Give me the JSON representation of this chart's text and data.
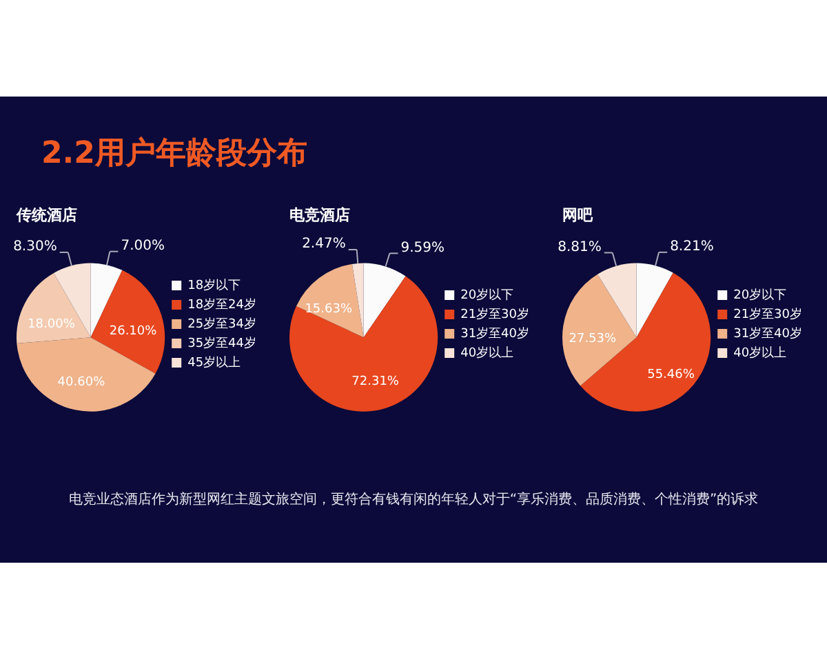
{
  "chart_data": [
    {
      "type": "pie",
      "title": "传统酒店",
      "categories": [
        "18岁以下",
        "18岁至24岁",
        "25岁至34岁",
        "35岁至44岁",
        "45岁以上"
      ],
      "values": [
        7.0,
        26.1,
        40.6,
        18.0,
        8.3
      ],
      "value_labels": [
        "7.00%",
        "26.10%",
        "40.60%",
        "18.00%",
        "8.30%"
      ],
      "colors": [
        "#fbfbfb",
        "#e8461e",
        "#f0b38a",
        "#f4cbb0",
        "#f7e3d8"
      ],
      "legend": "right",
      "annotations": [
        "2.2用户年龄段分布",
        "电竞业态酒店作为新型网红主题文旅空间，更符合有钱有闲的年轻人对于“享乐消费、品质消费、个性消费”的诉求"
      ]
    },
    {
      "type": "pie",
      "title": "电竞酒店",
      "categories": [
        "20岁以下",
        "21岁至30岁",
        "31岁至40岁",
        "40岁以上"
      ],
      "values": [
        9.59,
        72.31,
        15.63,
        2.47
      ],
      "value_labels": [
        "9.59%",
        "72.31%",
        "15.63%",
        "2.47%"
      ],
      "colors": [
        "#fbfbfb",
        "#e8461e",
        "#f0b38a",
        "#f7e3d8"
      ],
      "legend": "right"
    },
    {
      "type": "pie",
      "title": "网吧",
      "categories": [
        "20岁以下",
        "21岁至30岁",
        "31岁至40岁",
        "40岁以上"
      ],
      "values": [
        8.21,
        55.46,
        27.53,
        8.81
      ],
      "value_labels": [
        "8.21%",
        "55.46%",
        "27.53%",
        "8.81%"
      ],
      "colors": [
        "#fbfbfb",
        "#e8461e",
        "#f0b38a",
        "#f7e3d8"
      ],
      "legend": "right"
    }
  ]
}
